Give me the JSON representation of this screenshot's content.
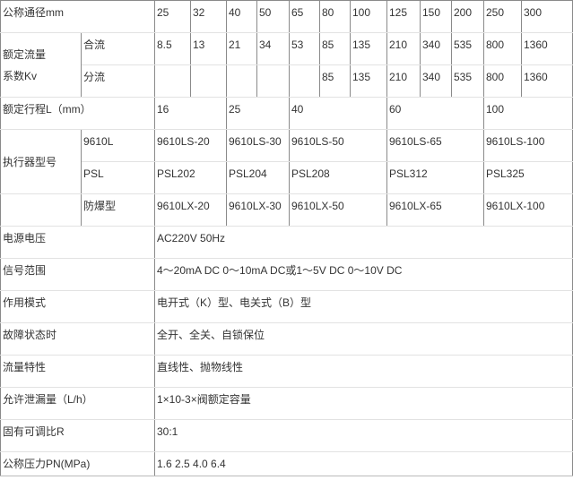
{
  "rows": {
    "diameter": {
      "label": "公称通径mm",
      "values": [
        "25",
        "32",
        "40",
        "50",
        "65",
        "80",
        "100",
        "125",
        "150",
        "200",
        "250",
        "300"
      ]
    },
    "kv": {
      "label_line1": "额定流量",
      "label_line2": "系数Kv",
      "merge": {
        "label": "合流",
        "values": [
          "8.5",
          "13",
          "21",
          "34",
          "53",
          "85",
          "135",
          "210",
          "340",
          "535",
          "800",
          "1360"
        ]
      },
      "split": {
        "label": "分流",
        "values": [
          "",
          "",
          "",
          "",
          "",
          "85",
          "135",
          "210",
          "340",
          "535",
          "800",
          "1360"
        ]
      }
    },
    "stroke": {
      "label": "额定行程L（mm）",
      "values": [
        "16",
        "25",
        "40",
        "60",
        "100"
      ]
    },
    "actuator": {
      "label": "执行器型号",
      "l9610": {
        "label": "9610L",
        "values": [
          "9610LS-20",
          "9610LS-30",
          "9610LS-50",
          "9610LS-65",
          "9610LS-100"
        ]
      },
      "psl": {
        "label": "PSL",
        "values": [
          "PSL202",
          "PSL204",
          "PSL208",
          "PSL312",
          "PSL325"
        ]
      },
      "explosion": {
        "label": "防爆型",
        "values": [
          "9610LX-20",
          "9610LX-30",
          "9610LX-50",
          "9610LX-65",
          "9610LX-100"
        ]
      }
    },
    "specs": [
      {
        "label": "电源电压",
        "value": "AC220V 50Hz"
      },
      {
        "label": "信号范围",
        "value": "4～20mA DC 0～10mA DC或1～5V DC 0～10V DC"
      },
      {
        "label": "作用模式",
        "value": "电开式（K）型、电关式（B）型"
      },
      {
        "label": "故障状态时",
        "value": "全开、全关、自锁保位"
      },
      {
        "label": "流量特性",
        "value": "直线性、抛物线性"
      },
      {
        "label": "允许泄漏量（L/h）",
        "value": "1×10-3×阀额定容量"
      },
      {
        "label": "固有可调比R",
        "value": "30:1"
      },
      {
        "label": "公称压力PN(MPa)",
        "value": "1.6  2.5  4.0  6.4"
      }
    ]
  }
}
